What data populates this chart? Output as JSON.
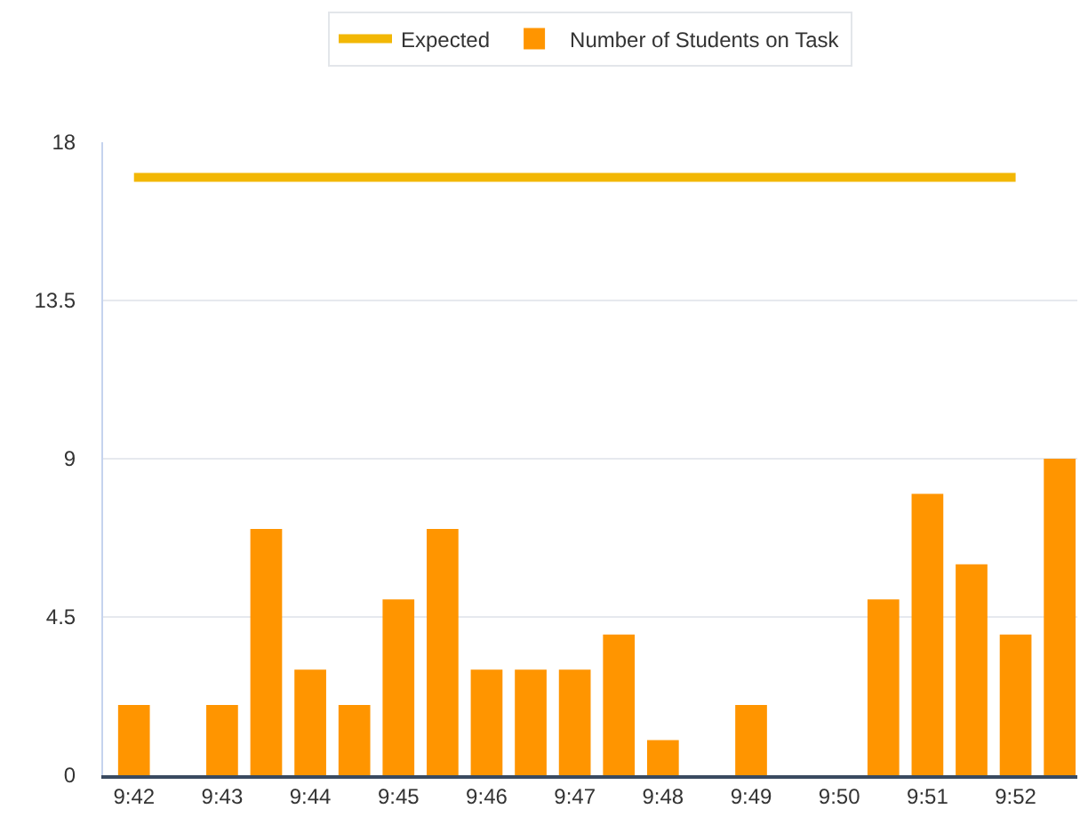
{
  "chart_data": {
    "type": "bar",
    "categories": [
      "9:42",
      null,
      "9:43",
      null,
      "9:44",
      null,
      "9:45",
      null,
      "9:46",
      null,
      "9:47",
      null,
      "9:48",
      null,
      "9:49",
      null,
      "9:50",
      null,
      "9:51",
      null,
      "9:52",
      null
    ],
    "series": [
      {
        "name": "Expected",
        "type": "line",
        "color": "#f2b705",
        "values": [
          17,
          17,
          17,
          17,
          17,
          17,
          17,
          17,
          17,
          17,
          17,
          17,
          17,
          17,
          17,
          17,
          17,
          17,
          17,
          17,
          17,
          null
        ]
      },
      {
        "name": "Number of Students on Task",
        "color": "#ff9500",
        "values": [
          2,
          0,
          2,
          7,
          3,
          2,
          5,
          7,
          3,
          3,
          3,
          4,
          1,
          0,
          2,
          0,
          0,
          5,
          8,
          6,
          4,
          9
        ]
      }
    ],
    "ylim": [
      0,
      18
    ],
    "yticks": [
      0,
      4.5,
      9,
      13.5,
      18
    ],
    "grid": "y",
    "legend": "top",
    "marker": "none",
    "line_style": "solid"
  }
}
